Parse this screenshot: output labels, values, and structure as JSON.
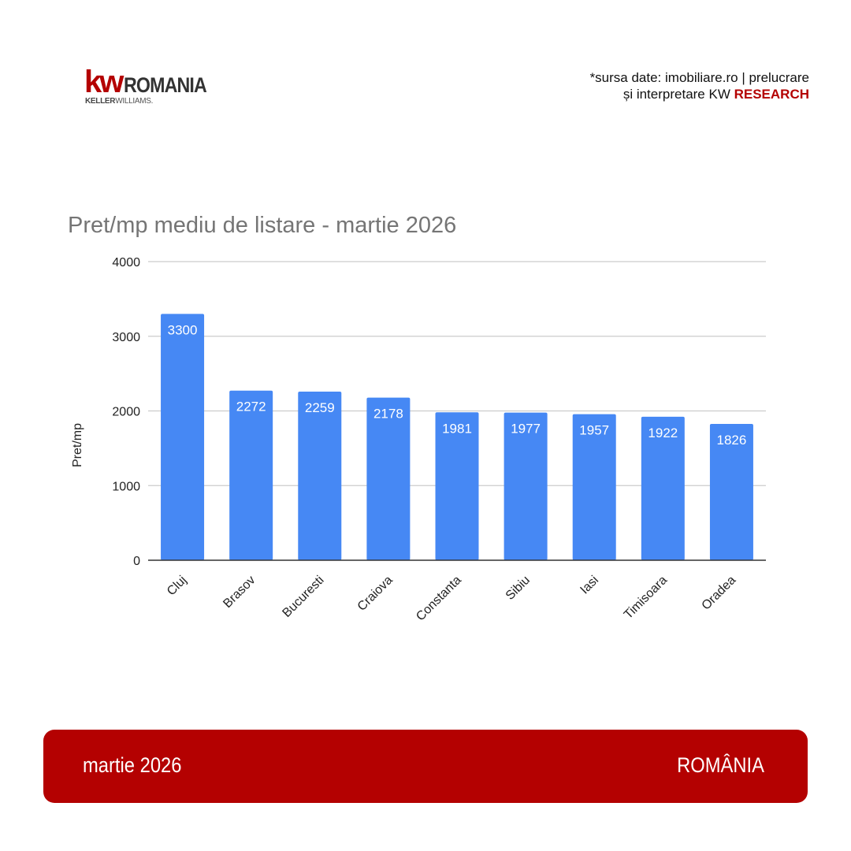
{
  "logo": {
    "kw": "kw",
    "country": "ROMANIA",
    "sub_bold": "KELLER",
    "sub_light": "WILLIAMS."
  },
  "source": {
    "line1": "*sursa date: imobiliare.ro  |  prelucrare",
    "line2_plain": "și interpretare  KW ",
    "line2_accent": "RESEARCH"
  },
  "footer": {
    "date": "martie 2026",
    "country": "ROMÂNIA"
  },
  "colors": {
    "brand_red": "#b40101",
    "bar": "#4688f4",
    "grid": "#cccccc",
    "baseline": "#333333"
  },
  "chart_data": {
    "type": "bar",
    "title": "Pret/mp mediu de listare - martie 2026",
    "xlabel": "",
    "ylabel": "Pret/mp",
    "ylim": [
      0,
      4000
    ],
    "yticks": [
      0,
      1000,
      2000,
      3000,
      4000
    ],
    "grid": true,
    "data_labels": true,
    "categories": [
      "Cluj",
      "Brasov",
      "Bucuresti",
      "Craiova",
      "Constanta",
      "Sibiu",
      "Iasi",
      "Timisoara",
      "Oradea"
    ],
    "values": [
      3300,
      2272,
      2259,
      2178,
      1981,
      1977,
      1957,
      1922,
      1826
    ]
  }
}
